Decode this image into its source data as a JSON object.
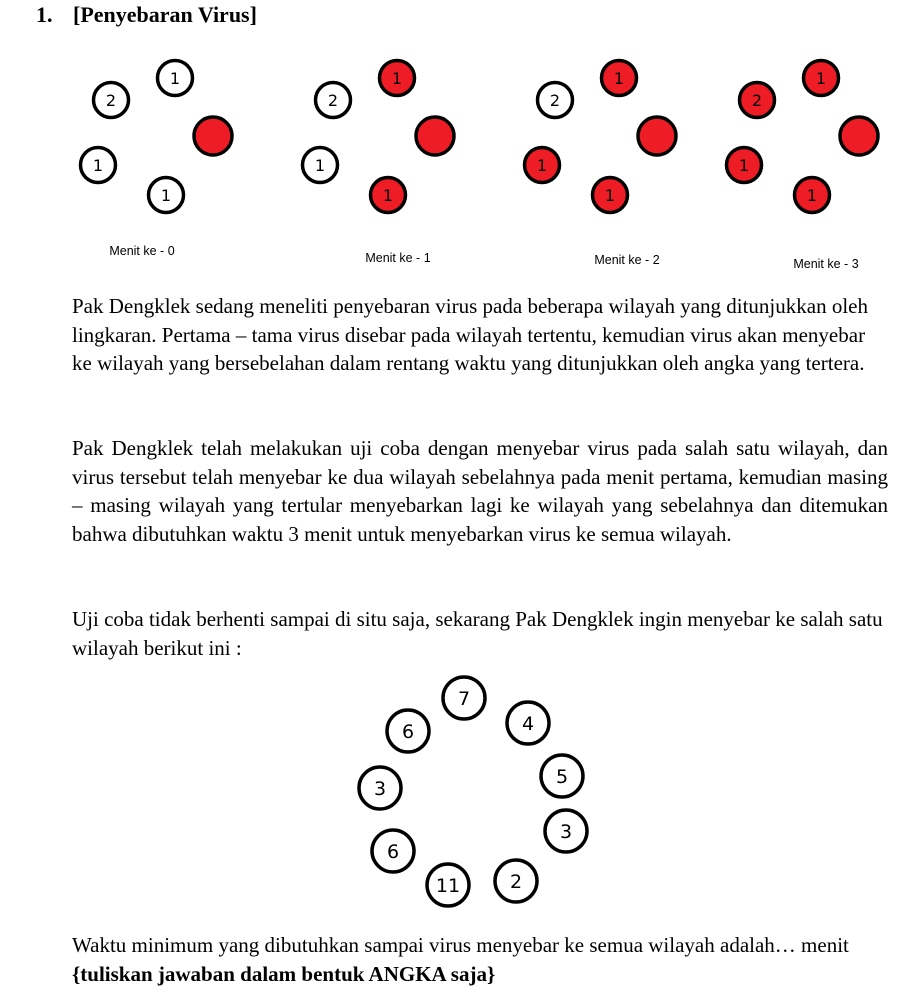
{
  "question": {
    "number": "1.",
    "title": "[Penyebaran Virus]"
  },
  "stages": [
    {
      "caption": "Menit ke - 0",
      "regions": [
        {
          "label": "1",
          "infected": false
        },
        {
          "label": "",
          "infected": true
        },
        {
          "label": "1",
          "infected": false
        },
        {
          "label": "1",
          "infected": false
        },
        {
          "label": "2",
          "infected": false
        }
      ]
    },
    {
      "caption": "Menit ke - 1",
      "regions": [
        {
          "label": "1",
          "infected": true
        },
        {
          "label": "",
          "infected": true
        },
        {
          "label": "1",
          "infected": true
        },
        {
          "label": "1",
          "infected": false
        },
        {
          "label": "2",
          "infected": false
        }
      ]
    },
    {
      "caption": "Menit ke - 2",
      "regions": [
        {
          "label": "1",
          "infected": true
        },
        {
          "label": "",
          "infected": true
        },
        {
          "label": "1",
          "infected": true
        },
        {
          "label": "1",
          "infected": true
        },
        {
          "label": "2",
          "infected": false
        }
      ]
    },
    {
      "caption": "Menit ke - 3",
      "regions": [
        {
          "label": "1",
          "infected": true
        },
        {
          "label": "",
          "infected": true
        },
        {
          "label": "1",
          "infected": true
        },
        {
          "label": "1",
          "infected": true
        },
        {
          "label": "2",
          "infected": true
        }
      ]
    }
  ],
  "paragraphs": {
    "p1": "Pak Dengklek sedang meneliti penyebaran virus pada beberapa wilayah yang ditunjukkan oleh lingkaran. Pertama – tama virus disebar pada wilayah tertentu, kemudian virus akan menyebar ke wilayah yang bersebelahan dalam rentang waktu yang ditunjukkan oleh angka yang tertera.",
    "p2": "Pak Dengklek telah melakukan uji coba dengan menyebar virus pada salah satu wilayah, dan virus tersebut telah menyebar ke dua wilayah sebelahnya pada menit pertama, kemudian masing – masing wilayah yang tertular menyebarkan lagi ke wilayah yang sebelahnya dan ditemukan bahwa dibutuhkan waktu 3 menit untuk menyebarkan virus ke semua wilayah.",
    "p3": "Uji coba tidak berhenti sampai di situ saja, sekarang Pak Dengklek ingin menyebar ke salah satu wilayah berikut ini :",
    "p4_text": "Waktu minimum yang dibutuhkan sampai virus menyebar ke semua wilayah adalah… menit ",
    "p4_bold": "{tuliskan jawaban dalam bentuk ANGKA saja}"
  },
  "ring": [
    "7",
    "4",
    "5",
    "3",
    "2",
    "11",
    "6",
    "3",
    "6"
  ]
}
